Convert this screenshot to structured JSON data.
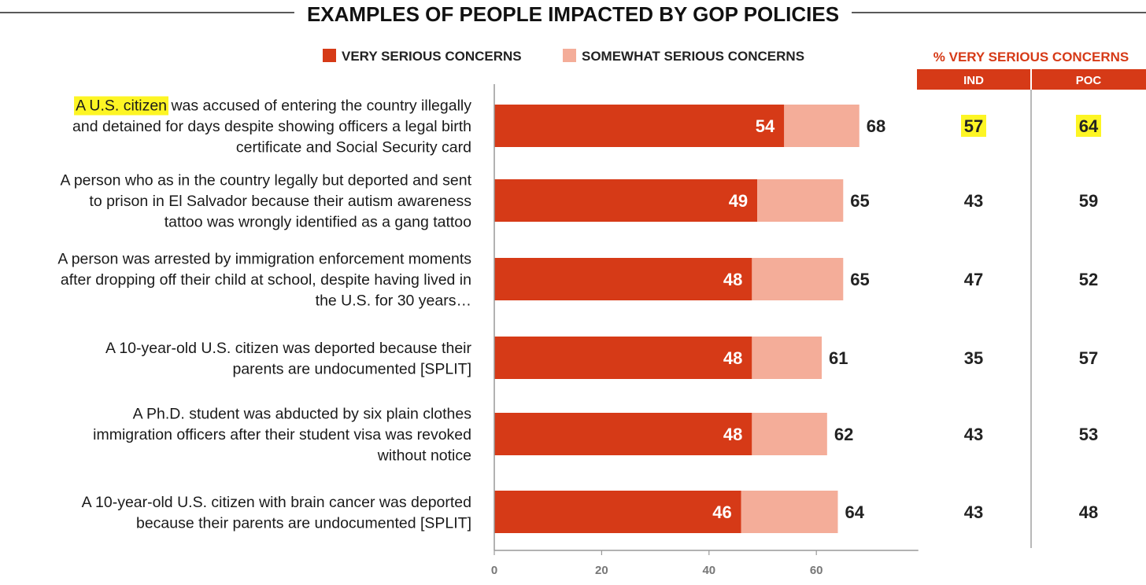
{
  "colors": {
    "very": "#d63a17",
    "somewhat": "#f4ad99",
    "header_bg": "#d63a17",
    "header_text": "#d63a17",
    "highlight": "#fdf524",
    "axis": "#999999"
  },
  "chart_data": {
    "type": "bar",
    "orientation": "horizontal",
    "stacked": true,
    "title": "EXAMPLES OF PEOPLE IMPACTED BY GOP POLICIES",
    "legend": {
      "placement": "top",
      "items": [
        "VERY SERIOUS CONCERNS",
        "SOMEWHAT SERIOUS CONCERNS"
      ]
    },
    "categories": [
      {
        "lines": [
          "A U.S. citizen was accused of entering the country illegally",
          "and detained for days despite showing officers a legal birth",
          "certificate and Social Security card"
        ],
        "highlight": "A U.S. citizen"
      },
      {
        "lines": [
          "A person who as in the country legally but deported and sent",
          "to prison in El Salvador because their autism awareness",
          "tattoo was wrongly identified as a gang tattoo"
        ]
      },
      {
        "lines": [
          "A person was arrested by immigration enforcement moments",
          "after dropping off their child at school, despite having lived in",
          "the U.S. for 30 years…"
        ]
      },
      {
        "lines": [
          "A 10-year-old U.S. citizen was deported because their",
          "parents are undocumented [SPLIT]"
        ]
      },
      {
        "lines": [
          "A Ph.D. student was abducted by six plain clothes",
          "immigration officers after their student visa was revoked",
          "without notice"
        ]
      },
      {
        "lines": [
          "A 10-year-old U.S. citizen with brain cancer was deported",
          "because their parents are undocumented [SPLIT]"
        ]
      }
    ],
    "series": [
      {
        "name": "VERY SERIOUS CONCERNS",
        "values": [
          54,
          49,
          48,
          48,
          48,
          46
        ]
      },
      {
        "name": "SOMEWHAT SERIOUS CONCERNS",
        "values": [
          14,
          16,
          17,
          13,
          14,
          18
        ]
      }
    ],
    "totals": [
      68,
      65,
      65,
      61,
      62,
      64
    ],
    "x_ticks": [
      "0",
      "20",
      "40",
      "60"
    ],
    "xlim": [
      0,
      79
    ],
    "grid": false,
    "side_table": {
      "title": "% VERY SERIOUS CONCERNS",
      "columns": [
        "IND",
        "POC"
      ],
      "values": [
        [
          "57",
          "64"
        ],
        [
          "43",
          "59"
        ],
        [
          "47",
          "52"
        ],
        [
          "35",
          "57"
        ],
        [
          "43",
          "53"
        ],
        [
          "43",
          "48"
        ]
      ],
      "highlighted_row": 0
    }
  }
}
